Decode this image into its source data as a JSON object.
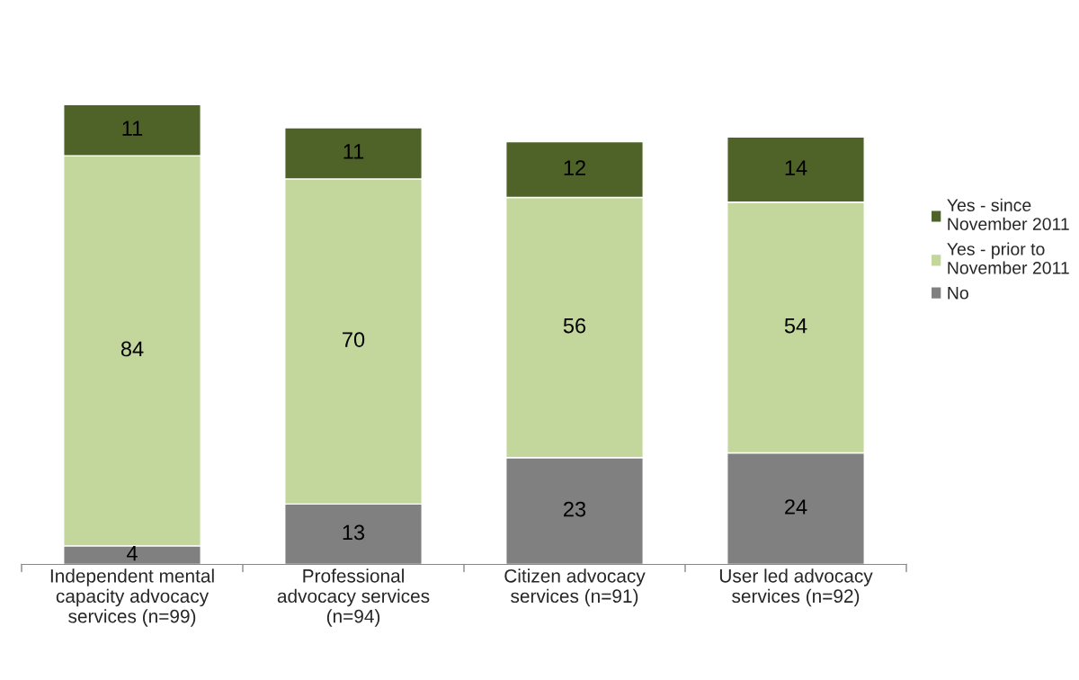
{
  "chart_data": {
    "type": "bar",
    "stacked": true,
    "data_labels": true,
    "tick_labels": "x",
    "grid": false,
    "legend": "right",
    "categories": [
      "Independent mental capacity advocacy services (n=99)",
      "Professional advocacy services (n=94)",
      "Citizen advocacy services (n=91)",
      "User led advocacy services (n=92)"
    ],
    "series": [
      {
        "name": "No",
        "color": "#808080",
        "values": [
          4,
          13,
          23,
          24
        ]
      },
      {
        "name": "Yes - prior to November 2011",
        "color": "#c3d69b",
        "values": [
          84,
          70,
          56,
          54
        ]
      },
      {
        "name": "Yes - since November 2011",
        "color": "#4f6228",
        "values": [
          11,
          11,
          12,
          14
        ]
      }
    ]
  }
}
